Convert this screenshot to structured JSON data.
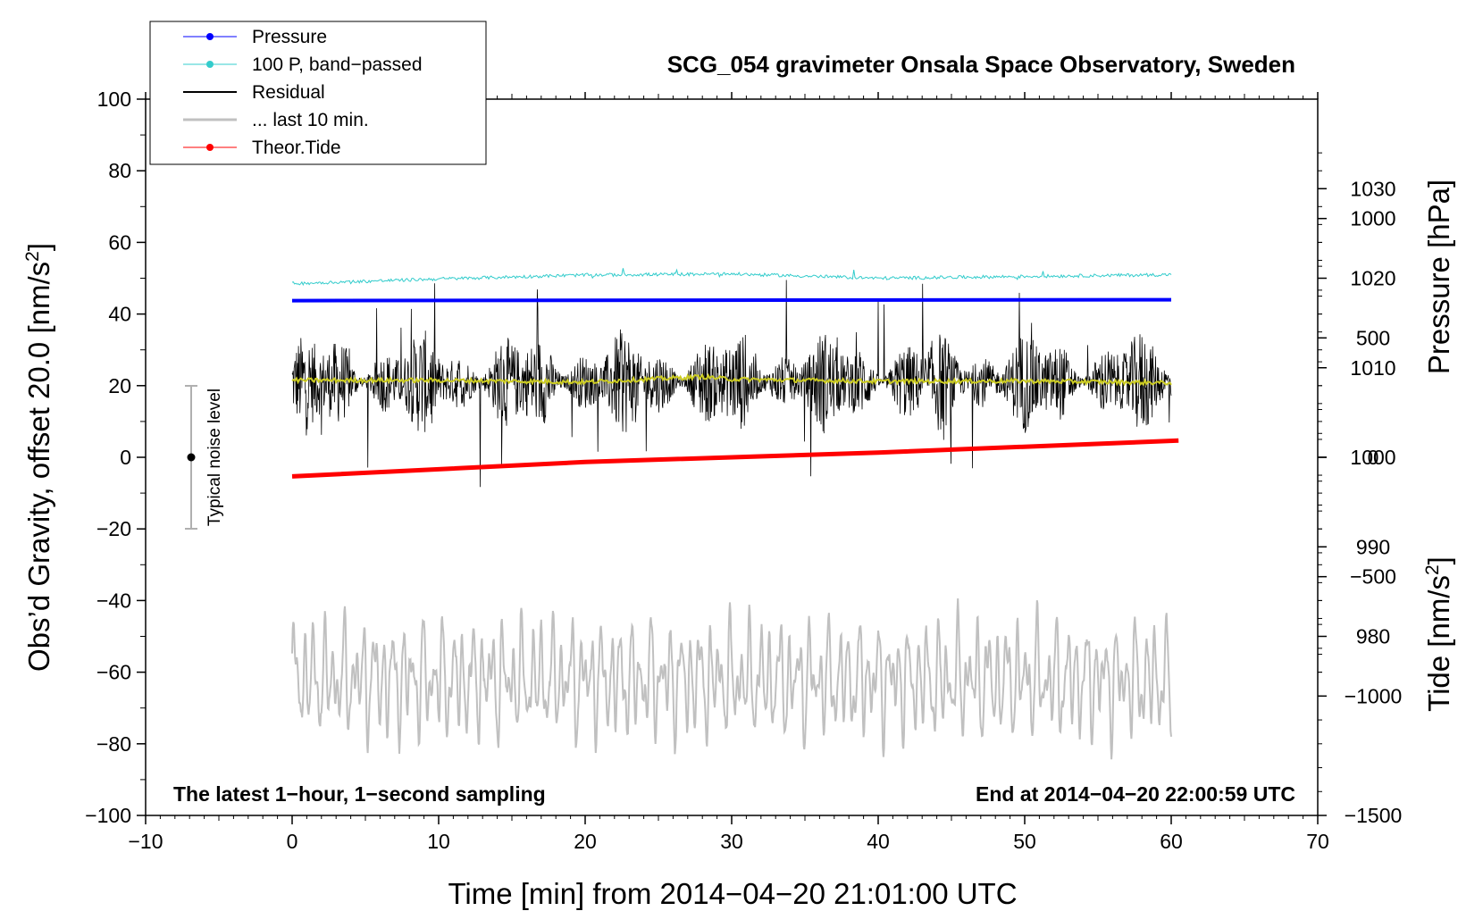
{
  "chart_data": {
    "type": "line",
    "title": "SCG_054 gravimeter Onsala Space Observatory, Sweden",
    "xlabel": "Time [min] from 2014−04−20 21:01:00 UTC",
    "ylabel_left": "Obs’d Gravity, offset 20.0 [nm/s",
    "ylabel_left_sup": "2",
    "ylabel_left_close": "]",
    "ylabel_right_top": "Pressure [hPa]",
    "ylabel_right_bottom": "Tide [nm/s",
    "ylabel_right_bottom_sup": "2",
    "ylabel_right_bottom_close": "]",
    "xlim": [
      -10,
      70
    ],
    "ylim_left": [
      -100,
      100
    ],
    "pressure_axis_range": [
      960,
      1040
    ],
    "tide_axis_range": [
      -1500,
      1500
    ],
    "x_ticks": [
      "−10",
      "0",
      "10",
      "20",
      "30",
      "40",
      "50",
      "60",
      "70"
    ],
    "x_tick_values": [
      -10,
      0,
      10,
      20,
      30,
      40,
      50,
      60,
      70
    ],
    "y_ticks_left": [
      "100",
      "80",
      "60",
      "40",
      "20",
      "0",
      "−20",
      "−40",
      "−60",
      "−80",
      "−100"
    ],
    "y_tick_values_left": [
      100,
      80,
      60,
      40,
      20,
      0,
      -20,
      -40,
      -60,
      -80,
      -100
    ],
    "pressure_ticks": [
      "1030",
      "1020",
      "1010",
      "1000",
      "990",
      "980"
    ],
    "pressure_tick_values": [
      1030,
      1020,
      1010,
      1000,
      990,
      980
    ],
    "tide_ticks": [
      "1000",
      "500",
      "0",
      "−500",
      "−1000",
      "−1500"
    ],
    "tide_tick_values": [
      1000,
      500,
      0,
      -500,
      -1000,
      -1500
    ],
    "note_left": "The latest 1−hour, 1−second sampling",
    "note_right": "End at 2014−04−20 22:00:59 UTC",
    "noise_label": "Typical noise level",
    "noise_marker": {
      "x": -7,
      "y": 0,
      "err": 20
    },
    "legend": [
      {
        "label": "Pressure",
        "color": "#0000ff",
        "marker": true
      },
      {
        "label": "100 P, band−passed",
        "color": "#33cccc",
        "marker": true
      },
      {
        "label": "Residual",
        "color": "#000000",
        "marker": false
      },
      {
        "label": "... last 10 min.",
        "color": "#c0c0c0",
        "marker": false
      },
      {
        "label": "Theor.Tide",
        "color": "#ff0000",
        "marker": true
      }
    ],
    "series": [
      {
        "name": "Pressure",
        "color": "#0000ff",
        "axis": "pressure_hPa",
        "x": [
          0,
          60
        ],
        "values": [
          1017.5,
          1017.6
        ]
      },
      {
        "name": "100 P, band−passed",
        "color": "#33cccc",
        "axis": "left",
        "x": [
          0,
          10,
          20,
          30,
          40,
          50,
          60
        ],
        "values": [
          48.5,
          49.8,
          50.9,
          51.2,
          50.0,
          50.5,
          51.0
        ]
      },
      {
        "name": "Residual",
        "color": "#000000",
        "axis": "left",
        "x": [
          0,
          60
        ],
        "values": [
          21.0,
          21.0
        ],
        "min": -12,
        "max": 56
      },
      {
        "name": "Residual smoothed",
        "color": "#cccc22",
        "axis": "left",
        "x": [
          0,
          10,
          20,
          28,
          30,
          40,
          50,
          60
        ],
        "values": [
          21.5,
          21.5,
          21.0,
          22.5,
          21.8,
          21.2,
          21.3,
          20.8
        ]
      },
      {
        "name": "... last 10 min.",
        "color": "#c0c0c0",
        "axis": "left",
        "x": [
          0,
          60
        ],
        "values": [
          -62,
          -62
        ],
        "min": -86,
        "max": -35
      },
      {
        "name": "Theor.Tide",
        "color": "#ff0000",
        "axis": "tide_nm_s2",
        "x": [
          0,
          20,
          40,
          60.5
        ],
        "values": [
          -80,
          -20,
          20,
          70
        ]
      }
    ],
    "colors": {
      "noise_bar": "#b0b0b0"
    }
  }
}
